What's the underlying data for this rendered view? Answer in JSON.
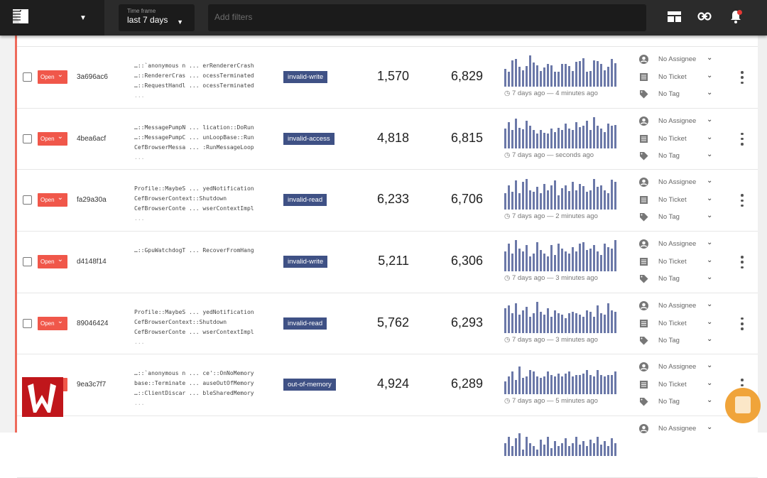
{
  "header": {
    "timeframe_label": "Time frame",
    "timeframe_value": "last 7 days",
    "filters_placeholder": "Add filters"
  },
  "colors": {
    "accent": "#f0574a",
    "tag": "#3f5185",
    "bars": "#6b78a8"
  },
  "rows": [
    {
      "status": "Open",
      "id": "3a696ac6",
      "frames": [
        "…::`anonymous n ... erRendererCrash",
        "…::RendererCras ... ocessTerminated",
        "…::RequestHandl ... ocessTerminated"
      ],
      "more": "...",
      "tag": "invalid-write",
      "count1": "1,570",
      "count2": "6,829",
      "range": "7 days ago — 4 minutes ago",
      "assignee": "No Assignee",
      "ticket": "No Ticket",
      "tagLabel": "No Tag",
      "bars": [
        55,
        45,
        80,
        85,
        60,
        50,
        62,
        95,
        75,
        65,
        48,
        58,
        70,
        65,
        45,
        45,
        70,
        70,
        62,
        48,
        76,
        78,
        88,
        45,
        48,
        80,
        78,
        70,
        50,
        60,
        85,
        72
      ]
    },
    {
      "status": "Open",
      "id": "4bea6acf",
      "frames": [
        "…::MessagePumpN ... lication::DoRun",
        "…::MessagePumpC ... unLoopBase::Run",
        "CefBrowserMessa ... :RunMessageLoop"
      ],
      "more": "...",
      "tag": "invalid-access",
      "count1": "4,818",
      "count2": "6,815",
      "range": "7 days ago — seconds ago",
      "assignee": "No Assignee",
      "ticket": "No Ticket",
      "tagLabel": "No Tag",
      "bars": [
        60,
        80,
        55,
        90,
        62,
        58,
        85,
        70,
        55,
        45,
        55,
        48,
        45,
        60,
        50,
        62,
        55,
        75,
        60,
        55,
        80,
        65,
        70,
        85,
        55,
        95,
        70,
        60,
        50,
        75,
        68,
        72
      ]
    },
    {
      "status": "Open",
      "id": "fa29a30a",
      "frames": [
        "Profile::MaybeS ... yedNotification",
        "CefBrowserContext::Shutdown",
        "CefBrowserConte ... wserContextImpl"
      ],
      "more": "...",
      "tag": "invalid-read",
      "count1": "6,233",
      "count2": "6,706",
      "range": "7 days ago — 2 minutes ago",
      "assignee": "No Assignee",
      "ticket": "No Ticket",
      "tagLabel": "No Tag",
      "bars": [
        50,
        75,
        55,
        90,
        50,
        85,
        95,
        60,
        55,
        70,
        50,
        80,
        60,
        75,
        90,
        45,
        65,
        75,
        58,
        85,
        60,
        80,
        72,
        55,
        60,
        95,
        70,
        75,
        60,
        50,
        92,
        85
      ]
    },
    {
      "status": "Open",
      "id": "d4148f14",
      "frames": [
        "…::GpuWatchdogT ... RecoverFromHang"
      ],
      "more": "",
      "tag": "invalid-write",
      "count1": "5,211",
      "count2": "6,306",
      "range": "7 days ago — 3 minutes ago",
      "assignee": "No Assignee",
      "ticket": "No Ticket",
      "tagLabel": "No Tag",
      "bars": [
        60,
        85,
        55,
        95,
        70,
        60,
        80,
        45,
        55,
        90,
        65,
        55,
        45,
        80,
        50,
        85,
        70,
        60,
        55,
        75,
        60,
        85,
        90,
        65,
        70,
        80,
        60,
        50,
        85,
        75,
        70,
        95
      ]
    },
    {
      "status": "Open",
      "id": "89046424",
      "frames": [
        "Profile::MaybeS ... yedNotification",
        "CefBrowserContext::Shutdown",
        "CefBrowserConte ... wserContextImpl"
      ],
      "more": "...",
      "tag": "invalid-read",
      "count1": "5,762",
      "count2": "6,293",
      "range": "7 days ago — 3 minutes ago",
      "assignee": "No Assignee",
      "ticket": "No Ticket",
      "tagLabel": "No Tag",
      "bars": [
        75,
        85,
        60,
        90,
        55,
        70,
        80,
        50,
        60,
        95,
        65,
        55,
        75,
        50,
        70,
        60,
        55,
        45,
        60,
        65,
        60,
        55,
        50,
        70,
        65,
        50,
        85,
        60,
        55,
        90,
        70,
        65
      ]
    },
    {
      "status": "Open",
      "id": "9ea3c7f7",
      "frames": [
        "…::`anonymous n ... ce'::OnNoMemory",
        "base::Terminate ... auseOutOfMemory",
        "…::ClientDiscar ... bleSharedMemory"
      ],
      "more": "...",
      "tag": "out-of-memory",
      "count1": "4,924",
      "count2": "6,289",
      "range": "7 days ago — 5 minutes ago",
      "assignee": "No Assignee",
      "ticket": "No Ticket",
      "tagLabel": "No Tag",
      "bars": [
        40,
        55,
        70,
        45,
        85,
        50,
        55,
        75,
        70,
        55,
        50,
        55,
        70,
        60,
        55,
        65,
        55,
        65,
        70,
        55,
        60,
        60,
        65,
        75,
        60,
        55,
        75,
        60,
        55,
        60,
        60,
        70
      ]
    },
    {
      "status": "",
      "id": "",
      "frames": [],
      "more": "",
      "tag": "",
      "count1": "",
      "count2": "",
      "range": "",
      "assignee": "No Assignee",
      "ticket": "",
      "tagLabel": "",
      "bars": [
        40,
        60,
        30,
        55,
        70,
        20,
        60,
        40,
        30,
        20,
        50,
        35,
        60,
        25,
        45,
        30,
        40,
        55,
        30,
        40,
        60,
        35,
        45,
        30,
        50,
        40,
        60,
        35,
        45,
        30,
        55,
        40
      ]
    }
  ]
}
